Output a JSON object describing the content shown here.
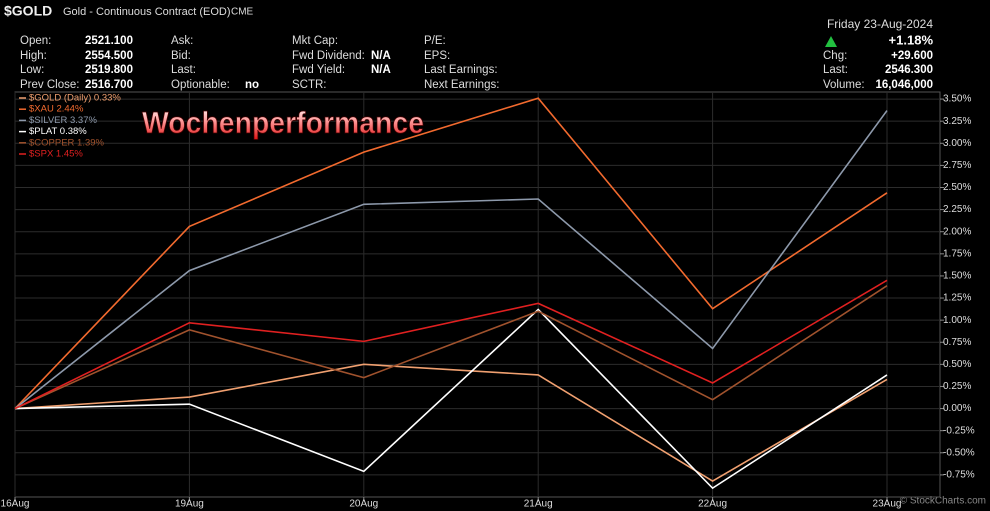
{
  "quote_panel": {
    "symbol": "$GOLD",
    "name": "Gold - Continuous Contract (EOD)",
    "exchange": "CME",
    "watermark": "© StockCharts.com",
    "columns": [
      [
        [
          "Open:",
          "2521.100"
        ],
        [
          "High:",
          "2554.500"
        ],
        [
          "Low:",
          "2519.800"
        ],
        [
          "Prev Close:",
          "2516.700"
        ]
      ],
      [
        [
          "Ask:"
        ],
        [
          "Bid:"
        ],
        [
          "Last:"
        ],
        [
          "Optionable:",
          "no"
        ]
      ],
      [
        [
          "Mkt Cap:"
        ],
        [
          "Fwd Dividend:",
          "N/A"
        ],
        [
          "Fwd Yield:",
          "N/A"
        ],
        [
          "SCTR:"
        ]
      ],
      [
        [
          "P/E:"
        ],
        [
          "EPS:"
        ],
        [
          "Last Earnings:"
        ],
        [
          "Next Earnings:"
        ]
      ]
    ],
    "date": "Friday  23-Aug-2024",
    "change_pct": "+1.18%",
    "right_rows": [
      [
        "Chg:",
        "+29.600"
      ],
      [
        "Last:",
        "2546.300"
      ],
      [
        "Volume:",
        "16,046,000"
      ]
    ]
  },
  "chart_data": {
    "type": "line",
    "annotation": "Wochenperformance",
    "categories": [
      "16Aug",
      "19Aug",
      "20Aug",
      "21Aug",
      "22Aug",
      "23Aug"
    ],
    "series": [
      {
        "name": "$GOLD (Daily) 0.33%",
        "color": "#f0a070",
        "values": [
          0,
          0.13,
          0.5,
          0.38,
          -0.82,
          0.33
        ]
      },
      {
        "name": "$XAU 2.44%",
        "color": "#f26a2e",
        "values": [
          0,
          2.06,
          2.9,
          3.51,
          1.13,
          2.44
        ]
      },
      {
        "name": "$SILVER 3.37%",
        "color": "#8d99ab",
        "values": [
          0,
          1.56,
          2.31,
          2.37,
          0.68,
          3.37
        ]
      },
      {
        "name": "$PLAT 0.38%",
        "color": "#ffffff",
        "values": [
          0,
          0.05,
          -0.71,
          1.12,
          -0.9,
          0.38
        ]
      },
      {
        "name": "$COPPER 1.39%",
        "color": "#a0522d",
        "values": [
          0,
          0.89,
          0.35,
          1.1,
          0.1,
          1.39
        ]
      },
      {
        "name": "$SPX 1.45%",
        "color": "#e02020",
        "values": [
          0,
          0.97,
          0.76,
          1.19,
          0.29,
          1.45
        ]
      }
    ],
    "ylim": [
      -1.0,
      3.58
    ],
    "yticks": [
      {
        "value": -0.75,
        "label": "-0.75%"
      },
      {
        "value": -0.5,
        "label": "-0.50%"
      },
      {
        "value": -0.25,
        "label": "-0.25%"
      },
      {
        "value": 0,
        "label": "0.00%"
      },
      {
        "value": 0.25,
        "label": "0.25%"
      },
      {
        "value": 0.5,
        "label": "0.50%"
      },
      {
        "value": 0.75,
        "label": "0.75%"
      },
      {
        "value": 1,
        "label": "1.00%"
      },
      {
        "value": 1.25,
        "label": "1.25%"
      },
      {
        "value": 1.5,
        "label": "1.50%"
      },
      {
        "value": 1.75,
        "label": "1.75%"
      },
      {
        "value": 2,
        "label": "2.00%"
      },
      {
        "value": 2.25,
        "label": "2.25%"
      },
      {
        "value": 2.5,
        "label": "2.50%"
      },
      {
        "value": 2.75,
        "label": "2.75%"
      },
      {
        "value": 3,
        "label": "3.00%"
      },
      {
        "value": 3.25,
        "label": "3.25%"
      },
      {
        "value": 3.5,
        "label": "3.50%"
      }
    ],
    "grid": true
  }
}
